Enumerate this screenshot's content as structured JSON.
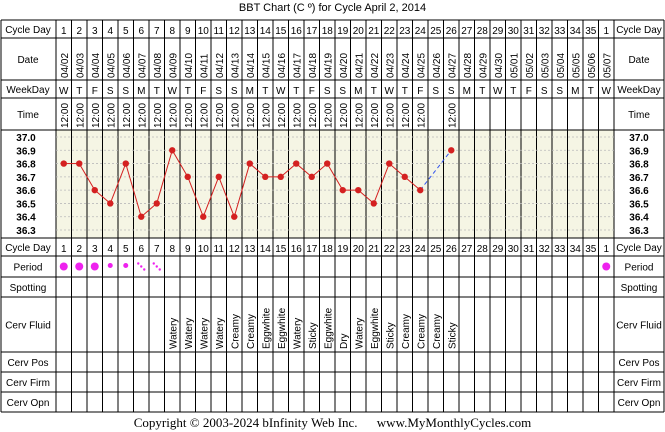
{
  "title": "BBT Chart (C º) for Cycle April 2, 2014",
  "row_labels": {
    "cycle_day": "Cycle Day",
    "date": "Date",
    "weekday": "WeekDay",
    "time": "Time",
    "period": "Period",
    "spotting": "Spotting",
    "cerv_fluid": "Cerv Fluid",
    "cerv_pos": "Cerv Pos",
    "cerv_firm": "Cerv Firm",
    "cerv_opn": "Cerv Opn"
  },
  "cycle_days": [
    "1",
    "2",
    "3",
    "4",
    "5",
    "6",
    "7",
    "8",
    "9",
    "10",
    "11",
    "12",
    "13",
    "14",
    "15",
    "16",
    "17",
    "18",
    "19",
    "20",
    "21",
    "22",
    "23",
    "24",
    "25",
    "26",
    "27",
    "28",
    "29",
    "30",
    "31",
    "32",
    "33",
    "34",
    "35",
    "1"
  ],
  "dates": [
    "04/02",
    "04/03",
    "04/04",
    "04/05",
    "04/06",
    "04/07",
    "04/08",
    "04/09",
    "04/10",
    "04/11",
    "04/12",
    "04/13",
    "04/14",
    "04/15",
    "04/16",
    "04/17",
    "04/18",
    "04/19",
    "04/20",
    "04/21",
    "04/22",
    "04/23",
    "04/24",
    "04/25",
    "04/26",
    "04/27",
    "04/28",
    "04/29",
    "04/30",
    "05/01",
    "05/02",
    "05/03",
    "05/04",
    "05/05",
    "05/06",
    "05/07"
  ],
  "weekdays": [
    "W",
    "T",
    "F",
    "S",
    "S",
    "M",
    "T",
    "W",
    "T",
    "F",
    "S",
    "S",
    "M",
    "T",
    "W",
    "T",
    "F",
    "S",
    "S",
    "M",
    "T",
    "W",
    "T",
    "F",
    "S",
    "S",
    "M",
    "T",
    "W",
    "T",
    "F",
    "S",
    "S",
    "M",
    "T",
    "W"
  ],
  "times": [
    "12:00",
    "12:00",
    "12:00",
    "12:00",
    "12:00",
    "12:00",
    "12:00",
    "12:00",
    "12:00",
    "12:00",
    "12:00",
    "12:00",
    "12:00",
    "12:00",
    "12:00",
    "12:00",
    "12:00",
    "12:00",
    "12:00",
    "12:00",
    "12:00",
    "12:00",
    "12:00",
    "12:00",
    "",
    "12:00",
    "",
    "",
    "",
    "",
    "",
    "",
    "",
    "",
    "",
    ""
  ],
  "cervical_fluid": [
    "",
    "",
    "",
    "",
    "",
    "",
    "",
    "Watery",
    "Watery",
    "Watery",
    "Watery",
    "Creamy",
    "Creamy",
    "Eggwhite",
    "Eggwhite",
    "Watery",
    "Sticky",
    "Eggwhite",
    "Dry",
    "Watery",
    "Eggwhite",
    "Sticky",
    "Creamy",
    "Creamy",
    "Creamy",
    "Sticky",
    "",
    "",
    "",
    "",
    "",
    "",
    "",
    "",
    "",
    ""
  ],
  "period": [
    "heavy",
    "heavy",
    "heavy",
    "medium",
    "medium",
    "spotting",
    "spotting",
    "",
    "",
    "",
    "",
    "",
    "",
    "",
    "",
    "",
    "",
    "",
    "",
    "",
    "",
    "",
    "",
    "",
    "",
    "",
    "",
    "",
    "",
    "",
    "",
    "",
    "",
    "",
    "",
    "heavy"
  ],
  "chart_data": {
    "type": "line",
    "title": "BBT Chart (C º) for Cycle April 2, 2014",
    "y_ticks": [
      "37.0",
      "36.9",
      "36.8",
      "36.7",
      "36.6",
      "36.5",
      "36.4",
      "36.3"
    ],
    "ylim": [
      36.3,
      37.0
    ],
    "x": [
      1,
      2,
      3,
      4,
      5,
      6,
      7,
      8,
      9,
      10,
      11,
      12,
      13,
      14,
      15,
      16,
      17,
      18,
      19,
      20,
      21,
      22,
      23,
      24,
      26
    ],
    "temperatures": [
      36.8,
      36.8,
      36.6,
      36.5,
      36.8,
      36.4,
      36.5,
      36.9,
      36.7,
      36.4,
      36.7,
      36.4,
      36.8,
      36.7,
      36.7,
      36.8,
      36.7,
      36.8,
      36.6,
      36.6,
      36.5,
      36.8,
      36.7,
      36.6,
      36.9
    ],
    "series_colors": {
      "solid": "#d42020",
      "dashed": "#3355ee",
      "period": "#ee22ee"
    }
  },
  "footer": {
    "copyright": "Copyright © 2003-2024 bInfinity Web Inc.",
    "site": "www.MyMonthlyCycles.com"
  }
}
